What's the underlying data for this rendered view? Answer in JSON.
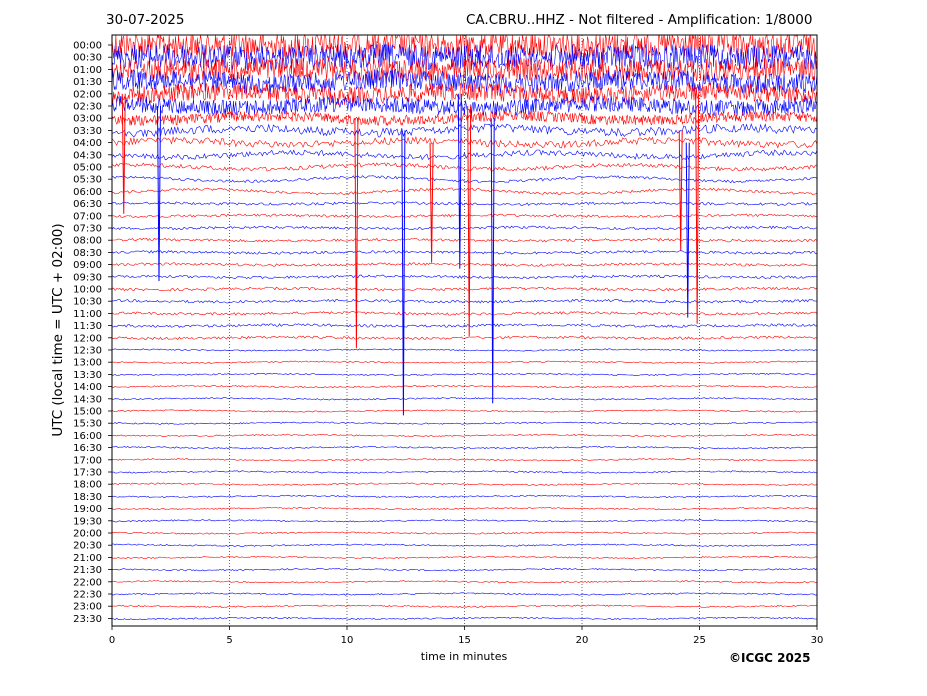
{
  "chart_data": {
    "type": "line",
    "date": "30-07-2025",
    "title": "CA.CBRU..HHZ - Not filtered - Amplification: 1/8000",
    "xlabel": "time in minutes",
    "ylabel": "UTC (local time = UTC + 02:00)",
    "xlim": [
      0,
      30
    ],
    "x_ticks": [
      0,
      5,
      10,
      15,
      20,
      25,
      30
    ],
    "row_labels": [
      "00:00",
      "00:30",
      "01:00",
      "01:30",
      "02:00",
      "02:30",
      "03:00",
      "03:30",
      "04:00",
      "04:30",
      "05:00",
      "05:30",
      "06:00",
      "06:30",
      "07:00",
      "07:30",
      "08:00",
      "08:30",
      "09:00",
      "09:30",
      "10:00",
      "10:30",
      "11:00",
      "11:30",
      "12:00",
      "12:30",
      "13:00",
      "13:30",
      "14:00",
      "14:30",
      "15:00",
      "15:30",
      "16:00",
      "16:30",
      "17:00",
      "17:30",
      "18:00",
      "18:30",
      "19:00",
      "19:30",
      "20:00",
      "20:30",
      "21:00",
      "21:30",
      "22:00",
      "22:30",
      "23:00",
      "23:30"
    ],
    "colors": {
      "even_rows": "#ff0000",
      "odd_rows": "#0000ff"
    },
    "vertical_gridlines": "dotted at every 5 minutes",
    "spike_events": [
      {
        "minute": 0.5
      },
      {
        "minute": 2.0
      },
      {
        "minute": 10.4
      },
      {
        "minute": 12.4
      },
      {
        "minute": 13.6
      },
      {
        "minute": 14.8
      },
      {
        "minute": 15.2
      },
      {
        "minute": 16.2
      },
      {
        "minute": 24.2
      },
      {
        "minute": 24.5
      },
      {
        "minute": 24.9
      }
    ],
    "copyright": "©ICGC 2025"
  }
}
